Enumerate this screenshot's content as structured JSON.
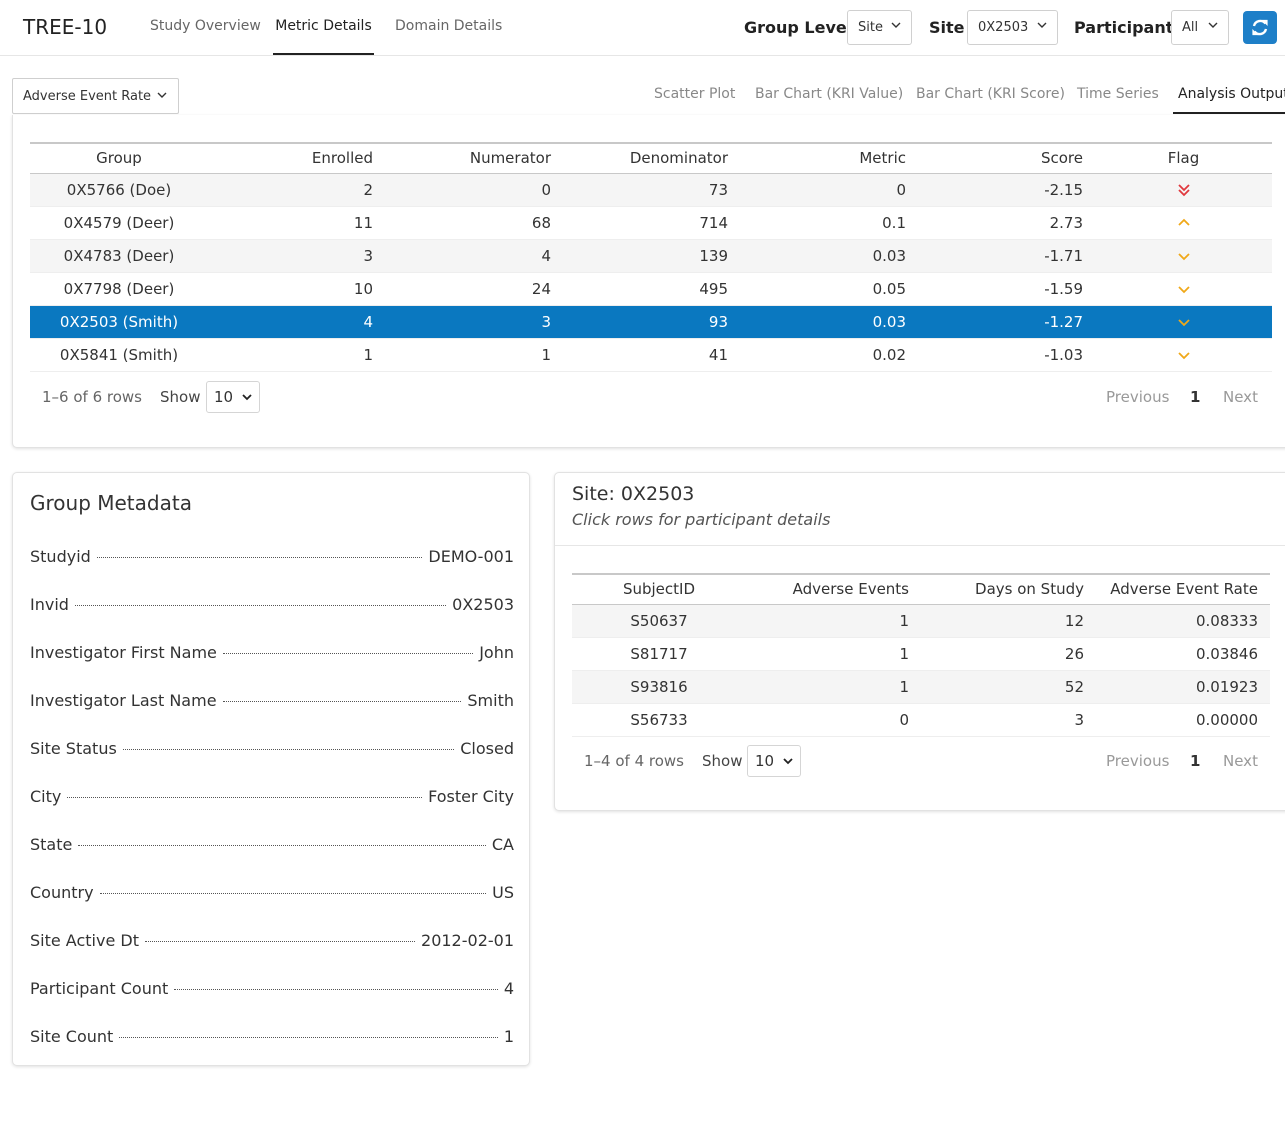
{
  "app": {
    "title": "TREE-10"
  },
  "nav": {
    "tabs": [
      "Study Overview",
      "Metric Details",
      "Domain Details"
    ],
    "active": "Metric Details"
  },
  "controls": {
    "group_level_label": "Group Level",
    "group_level_value": "Site",
    "site_label": "Site",
    "site_value": "0X2503",
    "participant_label": "Participant",
    "participant_value": "All"
  },
  "metric_select": {
    "value": "Adverse Event Rate"
  },
  "subtabs": [
    "Scatter Plot",
    "Bar Chart (KRI Value)",
    "Bar Chart (KRI Score)",
    "Time Series",
    "Analysis Output"
  ],
  "analysis_table": {
    "headers": [
      "Group",
      "Enrolled",
      "Numerator",
      "Denominator",
      "Metric",
      "Score",
      "Flag"
    ],
    "rows": [
      {
        "group": "0X5766 (Doe)",
        "enrolled": "2",
        "numerator": "0",
        "denominator": "73",
        "metric": "0",
        "score": "-2.15",
        "flag": "double-down"
      },
      {
        "group": "0X4579 (Deer)",
        "enrolled": "11",
        "numerator": "68",
        "denominator": "714",
        "metric": "0.1",
        "score": "2.73",
        "flag": "up"
      },
      {
        "group": "0X4783 (Deer)",
        "enrolled": "3",
        "numerator": "4",
        "denominator": "139",
        "metric": "0.03",
        "score": "-1.71",
        "flag": "down"
      },
      {
        "group": "0X7798 (Deer)",
        "enrolled": "10",
        "numerator": "24",
        "denominator": "495",
        "metric": "0.05",
        "score": "-1.59",
        "flag": "down"
      },
      {
        "group": "0X2503 (Smith)",
        "enrolled": "4",
        "numerator": "3",
        "denominator": "93",
        "metric": "0.03",
        "score": "-1.27",
        "flag": "down",
        "selected": true
      },
      {
        "group": "0X5841 (Smith)",
        "enrolled": "1",
        "numerator": "1",
        "denominator": "41",
        "metric": "0.02",
        "score": "-1.03",
        "flag": "down"
      }
    ],
    "pager": {
      "info": "1–6 of 6 rows",
      "show_label": "Show",
      "page_size": "10",
      "prev": "Previous",
      "page": "1",
      "next": "Next"
    }
  },
  "metadata": {
    "title": "Group Metadata",
    "items": [
      {
        "label": "Studyid",
        "value": "DEMO-001"
      },
      {
        "label": "Invid",
        "value": "0X2503"
      },
      {
        "label": "Investigator First Name",
        "value": "John"
      },
      {
        "label": "Investigator Last Name",
        "value": "Smith"
      },
      {
        "label": "Site Status",
        "value": "Closed"
      },
      {
        "label": "City",
        "value": "Foster City"
      },
      {
        "label": "State",
        "value": "CA"
      },
      {
        "label": "Country",
        "value": "US"
      },
      {
        "label": "Site Active Dt",
        "value": "2012-02-01"
      },
      {
        "label": "Participant Count",
        "value": "4"
      },
      {
        "label": "Site Count",
        "value": "1"
      }
    ]
  },
  "site_panel": {
    "title": "Site: 0X2503",
    "subtitle": "Click rows for participant details",
    "headers": [
      "SubjectID",
      "Adverse Events",
      "Days on Study",
      "Adverse Event Rate"
    ],
    "rows": [
      {
        "subject": "S50637",
        "events": "1",
        "days": "12",
        "rate": "0.08333"
      },
      {
        "subject": "S81717",
        "events": "1",
        "days": "26",
        "rate": "0.03846"
      },
      {
        "subject": "S93816",
        "events": "1",
        "days": "52",
        "rate": "0.01923"
      },
      {
        "subject": "S56733",
        "events": "0",
        "days": "3",
        "rate": "0.00000"
      }
    ],
    "pager": {
      "info": "1–4 of 4 rows",
      "show_label": "Show",
      "page_size": "10",
      "prev": "Previous",
      "page": "1",
      "next": "Next"
    }
  },
  "colors": {
    "accent": "#0a78c0",
    "flag_red": "#e0383e",
    "flag_amber": "#f0a818",
    "refresh_btn": "#1e7fc8"
  },
  "icons": {
    "refresh": "refresh-icon",
    "chevron": "chevron-down-icon"
  }
}
